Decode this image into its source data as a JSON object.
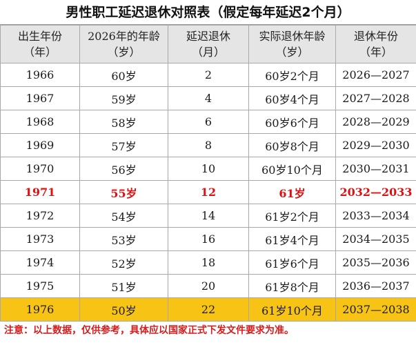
{
  "title": "男性职工延迟退休对照表（假定每年延迟2个月）",
  "headers": [
    {
      "line1": "出生年份",
      "line2": "（年）"
    },
    {
      "line1": "2026年的年龄",
      "line2": "（岁）"
    },
    {
      "line1": "延迟退休",
      "line2": "（月）"
    },
    {
      "line1": "实际退休年龄",
      "line2": "（岁）"
    },
    {
      "line1": "退休年份",
      "line2": "（年）"
    }
  ],
  "rows": [
    {
      "birth_year": "1966",
      "age_2026": "60岁",
      "delay_months": "2",
      "actual_age": "60岁2个月",
      "retire_years": "2026—2027"
    },
    {
      "birth_year": "1967",
      "age_2026": "59岁",
      "delay_months": "4",
      "actual_age": "60岁4个月",
      "retire_years": "2027—2028"
    },
    {
      "birth_year": "1968",
      "age_2026": "58岁",
      "delay_months": "6",
      "actual_age": "60岁6个月",
      "retire_years": "2028—2029"
    },
    {
      "birth_year": "1969",
      "age_2026": "57岁",
      "delay_months": "8",
      "actual_age": "60岁8个月",
      "retire_years": "2029—2030"
    },
    {
      "birth_year": "1970",
      "age_2026": "56岁",
      "delay_months": "10",
      "actual_age": "60岁10个月",
      "retire_years": "2030—2031"
    },
    {
      "birth_year": "1971",
      "age_2026": "55岁",
      "delay_months": "12",
      "actual_age": "61岁",
      "retire_years": "2032—2033"
    },
    {
      "birth_year": "1972",
      "age_2026": "54岁",
      "delay_months": "14",
      "actual_age": "61岁2个月",
      "retire_years": "2033—2034"
    },
    {
      "birth_year": "1973",
      "age_2026": "53岁",
      "delay_months": "16",
      "actual_age": "61岁4个月",
      "retire_years": "2034—2035"
    },
    {
      "birth_year": "1974",
      "age_2026": "52岁",
      "delay_months": "18",
      "actual_age": "61岁6个月",
      "retire_years": "2035—2036"
    },
    {
      "birth_year": "1975",
      "age_2026": "51岁",
      "delay_months": "20",
      "actual_age": "61岁8个月",
      "retire_years": "2036—2037"
    },
    {
      "birth_year": "1976",
      "age_2026": "50岁",
      "delay_months": "22",
      "actual_age": "61岁10个月",
      "retire_years": "2037—2038"
    }
  ],
  "note": "注意：以上数据，仅供参考，具体应以国家正式下发文件要求为准。",
  "colors": {
    "highlight_text": "#e01010",
    "gold_row": "#f7c416",
    "header_bg": "#e5e5e5"
  }
}
